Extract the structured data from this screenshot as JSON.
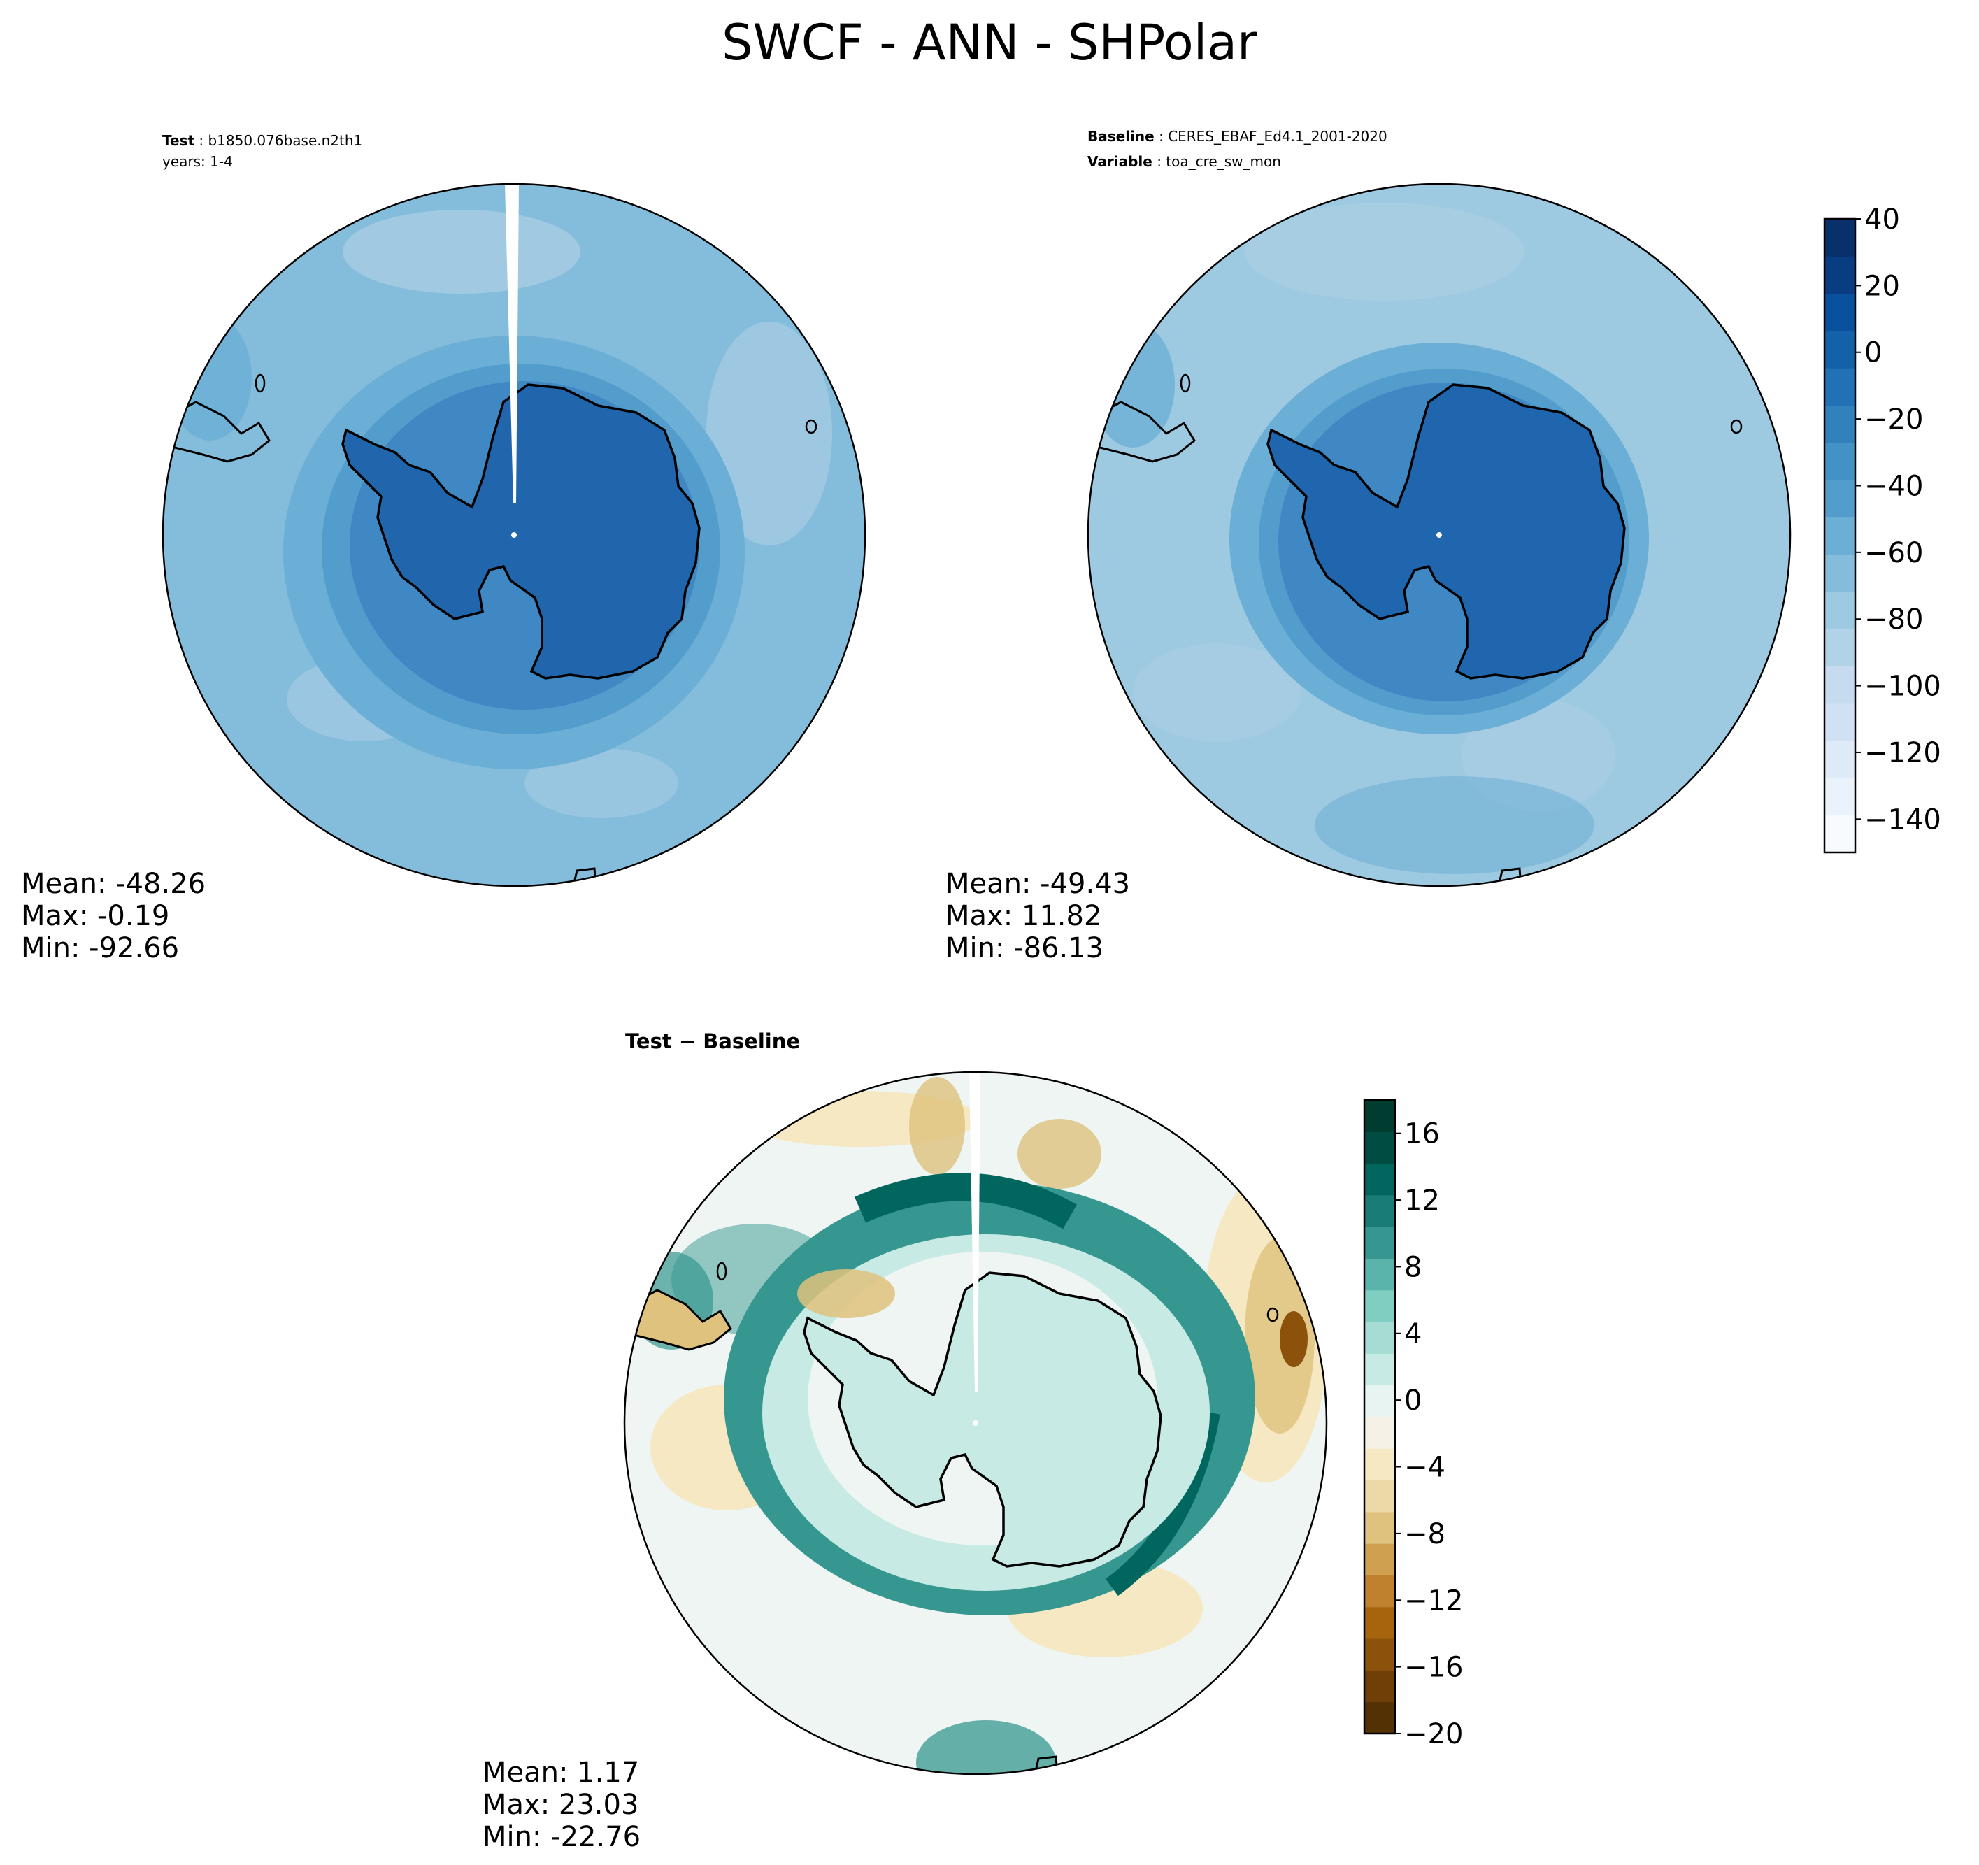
{
  "figure": {
    "title": "SWCF - ANN - SHPolar"
  },
  "panels": {
    "test": {
      "label_key": "Test",
      "label_value": "b1850.076base.n2th1",
      "years": "years: 1-4",
      "mean": "Mean: -48.26",
      "max": "Max: -0.19",
      "min": "Min: -92.66"
    },
    "baseline": {
      "label_key": "Baseline",
      "label_value": "CERES_EBAF_Ed4.1_2001-2020",
      "variable_key": "Variable",
      "variable_value": "toa_cre_sw_mon",
      "mean": "Mean: -49.43",
      "max": "Max: 11.82",
      "min": "Min: -86.13"
    },
    "diff": {
      "title": "Test − Baseline",
      "mean": "Mean:  1.17",
      "max": "Max: 23.03",
      "min": "Min: -22.76"
    }
  },
  "colorbars": {
    "main": {
      "range": [
        -150,
        40
      ],
      "ticks": [
        "40",
        "20",
        "0",
        "−20",
        "−40",
        "−60",
        "−80",
        "−100",
        "−120",
        "−140"
      ],
      "colors": [
        "#f7fbff",
        "#eaf3fb",
        "#deebf7",
        "#cfe1f2",
        "#c6dbef",
        "#b2d2e8",
        "#9ecae1",
        "#84bcdb",
        "#6baed6",
        "#529dcc",
        "#4292c6",
        "#3181bd",
        "#2171b5",
        "#1361a9",
        "#08519c",
        "#083e81",
        "#08306b"
      ]
    },
    "diff": {
      "range": [
        -20,
        18
      ],
      "ticks": [
        "16",
        "12",
        "8",
        "4",
        "0",
        "−4",
        "−8",
        "−12",
        "−16",
        "−20"
      ],
      "colors": [
        "#543005",
        "#6f3f07",
        "#8c510a",
        "#a6640d",
        "#bf812d",
        "#cfa04f",
        "#dfc27d",
        "#ecd9a8",
        "#f6e8c3",
        "#f5f1e6",
        "#e8f4f2",
        "#c7eae5",
        "#a6dcd3",
        "#80cdc1",
        "#5ab4ac",
        "#35978f",
        "#1a7d75",
        "#01665e",
        "#004c42",
        "#003c30"
      ]
    }
  },
  "map_colors": {
    "outer_test": "#84bcdb",
    "ring_test_1": "#6baed6",
    "ring_test_2": "#529dcc",
    "ring_test_3": "#3f88c3",
    "continent_test": "#2166ac",
    "light_patch": "#a9cde4",
    "outer_base": "#9ecae1",
    "continent_base": "#1f66af",
    "diff_bg": "#eef5f3",
    "diff_ring": "#35978f",
    "diff_ring_dark": "#01665e",
    "diff_inner": "#c7eae5",
    "diff_brown": "#dfc27d",
    "diff_brown_dark": "#8c510a",
    "diff_tan": "#f6e8c3"
  }
}
